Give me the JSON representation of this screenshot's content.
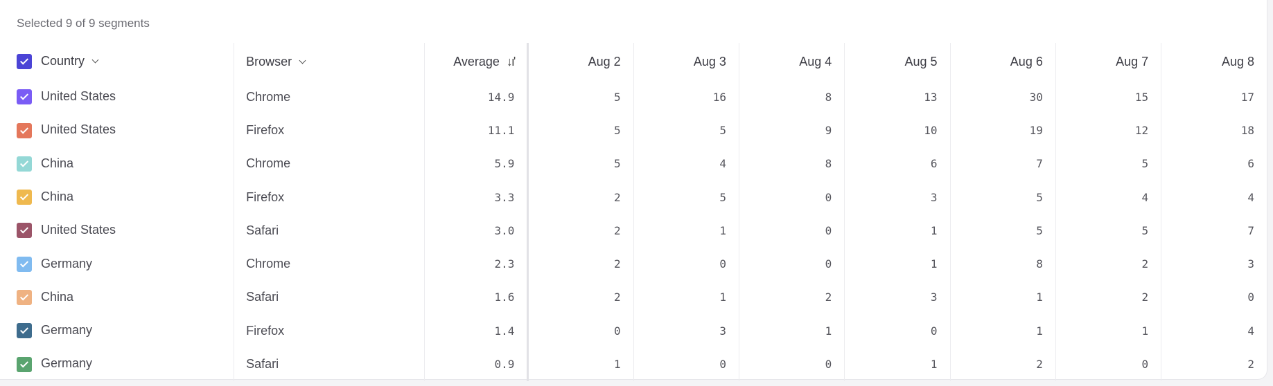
{
  "title": "Selected 9 of 9 segments",
  "header": {
    "country": "Country",
    "browser": "Browser",
    "average": "Average",
    "sort_icon": "sort-descending-icon",
    "header_checkbox_color": "#4b44d6",
    "dates": [
      "Aug 2",
      "Aug 3",
      "Aug 4",
      "Aug 5",
      "Aug 6",
      "Aug 7",
      "Aug 8"
    ]
  },
  "rows": [
    {
      "country": "United States",
      "browser": "Chrome",
      "average": "14.9",
      "color": "#7a5cf5",
      "values": [
        "5",
        "16",
        "8",
        "13",
        "30",
        "15",
        "17"
      ]
    },
    {
      "country": "United States",
      "browser": "Firefox",
      "average": "11.1",
      "color": "#e4775b",
      "values": [
        "5",
        "5",
        "9",
        "10",
        "19",
        "12",
        "18"
      ]
    },
    {
      "country": "China",
      "browser": "Chrome",
      "average": "5.9",
      "color": "#94d8d6",
      "values": [
        "5",
        "4",
        "8",
        "6",
        "7",
        "5",
        "6"
      ]
    },
    {
      "country": "China",
      "browser": "Firefox",
      "average": "3.3",
      "color": "#efb94f",
      "values": [
        "2",
        "5",
        "0",
        "3",
        "5",
        "4",
        "4"
      ]
    },
    {
      "country": "United States",
      "browser": "Safari",
      "average": "3.0",
      "color": "#9b5468",
      "values": [
        "2",
        "1",
        "0",
        "1",
        "5",
        "5",
        "7"
      ]
    },
    {
      "country": "Germany",
      "browser": "Chrome",
      "average": "2.3",
      "color": "#80bbf0",
      "values": [
        "2",
        "0",
        "0",
        "1",
        "8",
        "2",
        "3"
      ]
    },
    {
      "country": "China",
      "browser": "Safari",
      "average": "1.6",
      "color": "#efb282",
      "values": [
        "2",
        "1",
        "2",
        "3",
        "1",
        "2",
        "0"
      ]
    },
    {
      "country": "Germany",
      "browser": "Firefox",
      "average": "1.4",
      "color": "#3e6c8d",
      "values": [
        "0",
        "3",
        "1",
        "0",
        "1",
        "1",
        "4"
      ]
    },
    {
      "country": "Germany",
      "browser": "Safari",
      "average": "0.9",
      "color": "#5aa46f",
      "values": [
        "1",
        "0",
        "0",
        "1",
        "2",
        "0",
        "2"
      ]
    }
  ]
}
